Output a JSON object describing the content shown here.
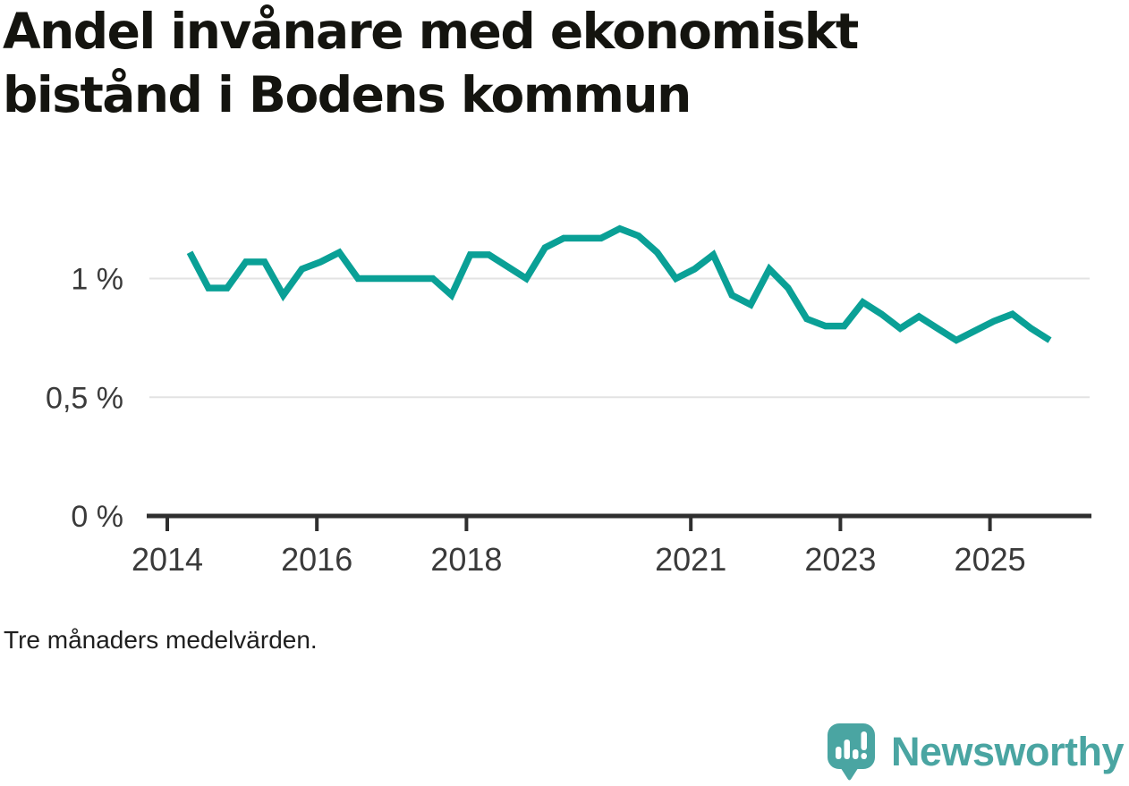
{
  "header": {
    "title": "Andel invånare med ekonomiskt\nbistånd i Bodens kommun"
  },
  "footnote": "Tre månaders medelvärden.",
  "branding": {
    "logo_text": "Newsworthy",
    "logo_icon": "speech-bubble-with-bar-chart-and-exclamation",
    "logo_color": "#4aa5a2"
  },
  "colors": {
    "line": "#0aa096",
    "grid": "#e3e3e3",
    "axis": "#2f2f2f",
    "tick_label": "#3a3a3a",
    "title": "#14140f"
  },
  "chart_data": {
    "type": "line",
    "title": "Andel invånare med ekonomiskt bistånd i Bodens kommun",
    "note": "Tre månaders medelvärden.",
    "unit": "%",
    "grid": "horizontal",
    "legend": "none",
    "line_color": "#0aa096",
    "x_start": 2014.3,
    "x_step": 0.25,
    "values": [
      1.11,
      0.96,
      0.96,
      1.07,
      1.07,
      0.93,
      1.04,
      1.07,
      1.11,
      1.0,
      1.0,
      1.0,
      1.0,
      1.0,
      0.93,
      1.1,
      1.1,
      1.05,
      1.0,
      1.13,
      1.17,
      1.17,
      1.17,
      1.21,
      1.18,
      1.11,
      1.0,
      1.04,
      1.1,
      0.93,
      0.89,
      1.04,
      0.96,
      0.83,
      0.8,
      0.8,
      0.9,
      0.85,
      0.79,
      0.84,
      0.79,
      0.74,
      0.78,
      0.82,
      0.85,
      0.79,
      0.74
    ],
    "x_ticks": [
      2014,
      2016,
      2018,
      2021,
      2023,
      2025
    ],
    "y_ticks": [
      {
        "value": 0,
        "label": "0 %"
      },
      {
        "value": 0.5,
        "label": "0,5 %"
      },
      {
        "value": 1,
        "label": "1 %"
      }
    ],
    "xlim": [
      2013.76,
      2026.33
    ],
    "ylim": [
      0,
      1.45
    ]
  }
}
